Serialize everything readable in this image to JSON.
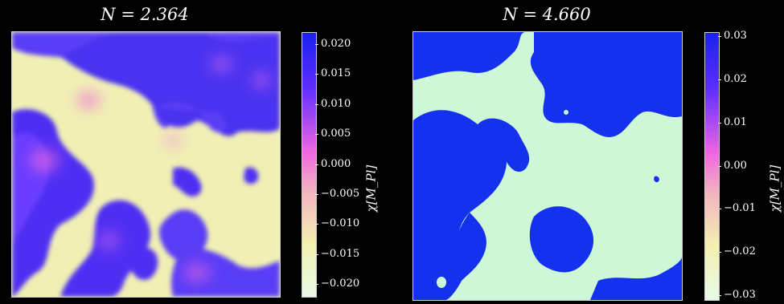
{
  "chart_data": [
    {
      "type": "heatmap",
      "title": "N = 2.364",
      "colorbar": {
        "label": "χ[M_Pl]",
        "range": [
          -0.022,
          0.022
        ],
        "ticks": [
          "0.020",
          "0.015",
          "0.010",
          "0.005",
          "0.000",
          "−0.005",
          "−0.010",
          "−0.015",
          "−0.020"
        ],
        "tick_values": [
          0.02,
          0.015,
          0.01,
          0.005,
          0.0,
          -0.005,
          -0.01,
          -0.015,
          -0.02
        ]
      },
      "colormap": [
        "#e8fbe8",
        "#f4f0b0",
        "#f3b4c0",
        "#ee66e0",
        "#5a2cff",
        "#1a22f0"
      ]
    },
    {
      "type": "heatmap",
      "title": "N = 4.660",
      "colorbar": {
        "label": "χ[M_Pl]",
        "range": [
          -0.031,
          0.031
        ],
        "ticks": [
          "0.03",
          "0.02",
          "0.01",
          "0.00",
          "−0.01",
          "−0.02",
          "−0.03"
        ],
        "tick_values": [
          0.03,
          0.02,
          0.01,
          0.0,
          -0.01,
          -0.02,
          -0.03
        ]
      },
      "colormap": [
        "#e8fbe8",
        "#f4f0b0",
        "#f3b4c0",
        "#ee66e0",
        "#5a2cff",
        "#1a22f0"
      ]
    }
  ]
}
